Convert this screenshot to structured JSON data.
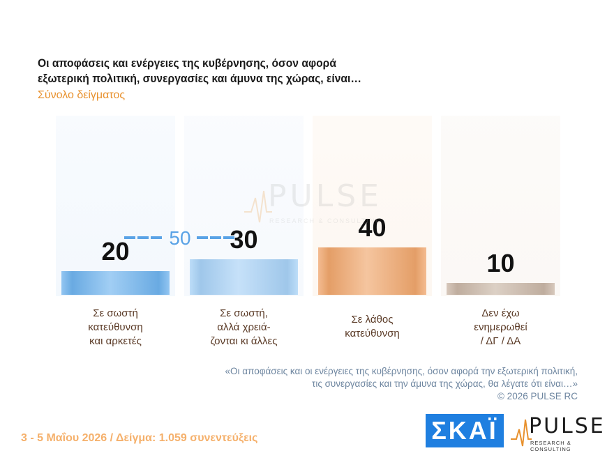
{
  "header": {
    "title_line1": "Οι αποφάσεις και ενέργειες της κυβέρνησης, όσον αφορά",
    "title_line2": "εξωτερική πολιτική, συνεργασίες και άμυνα της χώρας, είναι…",
    "subtitle": "Σύνολο δείγματος"
  },
  "chart_data": {
    "type": "bar",
    "categories": [
      "Σε σωστή\nκατεύθυνση\nκαι αρκετές",
      "Σε σωστή,\nαλλά χρειά-\nζονται κι άλλες",
      "Σε λάθος\nκατεύθυνση",
      "Δεν έχω\nενημερωθεί\n/ ΔΓ / ΔΑ"
    ],
    "values": [
      20,
      30,
      40,
      10
    ],
    "data_labels": [
      "20",
      "30",
      "40",
      "10"
    ],
    "colors": [
      "#6fb3ee",
      "#a7d1f6",
      "#f0a66c",
      "#c9b6a6"
    ],
    "panel_colors": [
      "#f3f8fd",
      "#f6f9fd",
      "#fdf7f1",
      "#fbf8f5"
    ],
    "reference_line": {
      "value": 50,
      "label": "50",
      "color": "#5aa3e6",
      "spans_categories": [
        0,
        1
      ]
    },
    "ylim": [
      0,
      100
    ]
  },
  "watermark": {
    "word": "PULSE",
    "sub": "RESEARCH & CONSULTING"
  },
  "note": {
    "line1": "«Οι αποφάσεις και οι ενέργειες της κυβέρνησης, όσον αφορά την εξωτερική πολιτική,",
    "line2": "τις συνεργασίες και την άμυνα της χώρας, θα λέγατε ότι είναι…»",
    "line3": "©  2026  PULSE RC"
  },
  "footer": {
    "left": "3 - 5  Μαΐου 2026  /  Δείγμα:  1.059 συνεντεύξεις",
    "skai_logo": "ΣΚΑΪ",
    "pulse_word": "PULSE",
    "pulse_sub": "RESEARCH & CONSULTING"
  }
}
